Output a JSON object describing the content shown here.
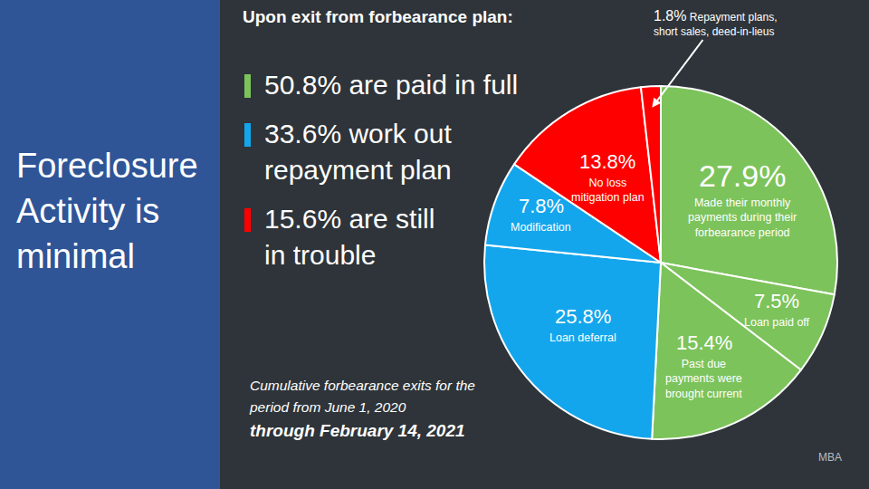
{
  "heading": "Foreclosure Activity is minimal",
  "chart_data": {
    "type": "pie",
    "title": "Upon exit from forbearance plan:",
    "categories": [
      "Made their monthly payments during their forbearance period",
      "Loan paid off",
      "Past due payments were brought current",
      "Loan deferral",
      "Modification",
      "No loss mitigation plan",
      "Repayment plans, short sales, deed-in-lieus"
    ],
    "values": [
      27.9,
      7.5,
      15.4,
      25.8,
      7.8,
      13.8,
      1.8
    ],
    "value_labels": [
      "27.9%",
      "7.5%",
      "15.4%",
      "25.8%",
      "7.8%",
      "13.8%",
      "1.8%"
    ],
    "colors": [
      "#7cc35b",
      "#7cc35b",
      "#7cc35b",
      "#14a6ec",
      "#14a6ec",
      "#ff0000",
      "#ff0000"
    ],
    "data_labels": true,
    "summary": [
      {
        "lines": [
          "50.8% are paid in full"
        ],
        "color": "#7cc35b"
      },
      {
        "lines": [
          "33.6% work out",
          "repayment plan"
        ],
        "color": "#14a6ec"
      },
      {
        "lines": [
          "15.6% are still",
          "in trouble"
        ],
        "color": "#ff0000"
      }
    ],
    "note": [
      "Cumulative forbearance exits for the period from June 1, 2020",
      "through February 14, 2021"
    ],
    "source": "MBA"
  }
}
